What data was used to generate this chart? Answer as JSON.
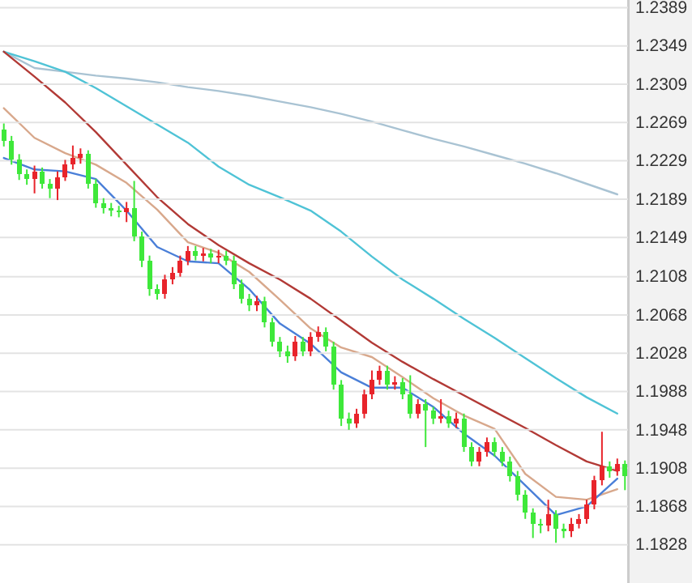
{
  "chart_data": [
    {
      "type": "candlestick",
      "tick_labels": "y",
      "grid": "y",
      "ylim": [
        1.1788,
        1.2397
      ],
      "yticks": [
        1.2389,
        1.2349,
        1.2309,
        1.2269,
        1.2229,
        1.2189,
        1.2149,
        1.2108,
        1.2068,
        1.2028,
        1.1988,
        1.1948,
        1.1908,
        1.1868,
        1.1828
      ],
      "categories": [
        null,
        null,
        null,
        null,
        null,
        null,
        null,
        null,
        null,
        null,
        null,
        null,
        null,
        null,
        null,
        null,
        null,
        null,
        null,
        null,
        null,
        null,
        null,
        null,
        null,
        null,
        null,
        null,
        null,
        null,
        null,
        null,
        null,
        null,
        null,
        null,
        null,
        null,
        null,
        null,
        null,
        null,
        null,
        null,
        null,
        null,
        null,
        null,
        null,
        null,
        null,
        null,
        null,
        null,
        null,
        null,
        null,
        null,
        null,
        null,
        null,
        null,
        null,
        null,
        null,
        null,
        null,
        null,
        null,
        null,
        null,
        null,
        null,
        null,
        null,
        null,
        null,
        null,
        null,
        null,
        null,
        null
      ],
      "ohlc": [
        [
          1.2262,
          1.2268,
          1.2244,
          1.225
        ],
        [
          1.225,
          1.2255,
          1.2225,
          1.223
        ],
        [
          1.223,
          1.2236,
          1.2209,
          1.2215
        ],
        [
          1.2215,
          1.222,
          1.2204,
          1.221
        ],
        [
          1.221,
          1.2224,
          1.2195,
          1.2218
        ],
        [
          1.2218,
          1.2222,
          1.22,
          1.2205
        ],
        [
          1.2205,
          1.221,
          1.219,
          1.22
        ],
        [
          1.22,
          1.2218,
          1.2188,
          1.2212
        ],
        [
          1.2212,
          1.223,
          1.2208,
          1.2225
        ],
        [
          1.2225,
          1.2245,
          1.222,
          1.2232
        ],
        [
          1.2232,
          1.2242,
          1.2226,
          1.2236
        ],
        [
          1.2236,
          1.224,
          1.22,
          1.2205
        ],
        [
          1.2205,
          1.221,
          1.218,
          1.2185
        ],
        [
          1.2185,
          1.219,
          1.2174,
          1.218
        ],
        [
          1.218,
          1.2185,
          1.2171,
          1.2177
        ],
        [
          1.2177,
          1.2182,
          1.217,
          1.2175
        ],
        [
          1.2175,
          1.2186,
          1.2165,
          1.218
        ],
        [
          1.218,
          1.2208,
          1.2145,
          1.215
        ],
        [
          1.215,
          1.2155,
          1.2118,
          1.2125
        ],
        [
          1.2125,
          1.213,
          1.2088,
          1.2095
        ],
        [
          1.2095,
          1.21,
          1.2084,
          1.209
        ],
        [
          1.209,
          1.211,
          1.2085,
          1.2105
        ],
        [
          1.2105,
          1.2118,
          1.21,
          1.2112
        ],
        [
          1.2112,
          1.213,
          1.2108,
          1.2125
        ],
        [
          1.2125,
          1.214,
          1.212,
          1.2135
        ],
        [
          1.2135,
          1.214,
          1.2125,
          1.213
        ],
        [
          1.213,
          1.2138,
          1.2124,
          1.2132
        ],
        [
          1.2132,
          1.2137,
          1.2122,
          1.2128
        ],
        [
          1.2128,
          1.2136,
          1.2122,
          1.213
        ],
        [
          1.213,
          1.2135,
          1.212,
          1.2125
        ],
        [
          1.2125,
          1.213,
          1.2095,
          1.21
        ],
        [
          1.21,
          1.2105,
          1.208,
          1.2085
        ],
        [
          1.2085,
          1.209,
          1.2072,
          1.2078
        ],
        [
          1.2078,
          1.2088,
          1.2072,
          1.2082
        ],
        [
          1.2082,
          1.2087,
          1.2055,
          1.206
        ],
        [
          1.206,
          1.2065,
          1.2035,
          1.204
        ],
        [
          1.204,
          1.2045,
          1.2024,
          1.203
        ],
        [
          1.203,
          1.2036,
          1.2018,
          1.2025
        ],
        [
          1.2025,
          1.2046,
          1.202,
          1.204
        ],
        [
          1.204,
          1.2045,
          1.2025,
          1.203
        ],
        [
          1.203,
          1.205,
          1.2025,
          1.2045
        ],
        [
          1.2045,
          1.2056,
          1.204,
          1.205
        ],
        [
          1.205,
          1.2055,
          1.203,
          1.2035
        ],
        [
          1.2035,
          1.204,
          1.199,
          1.1995
        ],
        [
          1.1995,
          1.2,
          1.1952,
          1.196
        ],
        [
          1.196,
          1.1966,
          1.1948,
          1.1955
        ],
        [
          1.1955,
          1.197,
          1.195,
          1.1965
        ],
        [
          1.1965,
          1.199,
          1.196,
          1.1985
        ],
        [
          1.1985,
          1.201,
          1.198,
          1.2
        ],
        [
          1.2,
          1.2015,
          1.1995,
          1.201
        ],
        [
          1.201,
          1.2015,
          1.199,
          1.1995
        ],
        [
          1.1995,
          1.2004,
          1.199,
          1.1998
        ],
        [
          1.1998,
          1.2002,
          1.198,
          1.1985
        ],
        [
          1.1985,
          1.2005,
          1.196,
          1.1965
        ],
        [
          1.1965,
          1.198,
          1.196,
          1.1975
        ],
        [
          1.1975,
          1.198,
          1.193,
          1.1968
        ],
        [
          1.1968,
          1.1972,
          1.1954,
          1.196
        ],
        [
          1.196,
          1.198,
          1.1955,
          1.1962
        ],
        [
          1.1962,
          1.1968,
          1.195,
          1.1955
        ],
        [
          1.1955,
          1.1966,
          1.195,
          1.196
        ],
        [
          1.196,
          1.1965,
          1.1925,
          1.193
        ],
        [
          1.193,
          1.1935,
          1.191,
          1.1915
        ],
        [
          1.1915,
          1.193,
          1.191,
          1.1925
        ],
        [
          1.1925,
          1.194,
          1.192,
          1.1935
        ],
        [
          1.1935,
          1.194,
          1.192,
          1.1925
        ],
        [
          1.1925,
          1.193,
          1.191,
          1.1915
        ],
        [
          1.1915,
          1.192,
          1.1894,
          1.19
        ],
        [
          1.19,
          1.1905,
          1.1874,
          1.188
        ],
        [
          1.188,
          1.1885,
          1.1855,
          1.1862
        ],
        [
          1.1862,
          1.1866,
          1.1835,
          1.185
        ],
        [
          1.185,
          1.1855,
          1.184,
          1.1848
        ],
        [
          1.1848,
          1.1875,
          1.1842,
          1.186
        ],
        [
          1.186,
          1.1864,
          1.183,
          1.1845
        ],
        [
          1.1845,
          1.185,
          1.1835,
          1.1842
        ],
        [
          1.1842,
          1.1856,
          1.1836,
          1.185
        ],
        [
          1.185,
          1.186,
          1.1845,
          1.1855
        ],
        [
          1.1855,
          1.1875,
          1.185,
          1.187
        ],
        [
          1.187,
          1.19,
          1.1865,
          1.1895
        ],
        [
          1.1895,
          1.1946,
          1.189,
          1.191
        ],
        [
          1.191,
          1.1915,
          1.1898,
          1.1905
        ],
        [
          1.1905,
          1.1918,
          1.19,
          1.1912
        ],
        [
          1.1912,
          1.1916,
          1.1885,
          1.19
        ]
      ]
    },
    {
      "type": "line",
      "tick_labels": false,
      "ylim": [
        1.1788,
        1.2397
      ],
      "yticks": [
        1.2389,
        1.2349,
        1.2309,
        1.2269,
        1.2229,
        1.2189,
        1.2149,
        1.2108,
        1.2068,
        1.2028,
        1.1988,
        1.1948,
        1.1908,
        1.1868,
        1.1828
      ],
      "categories": [
        null,
        null,
        null,
        null,
        null,
        null,
        null,
        null,
        null,
        null,
        null,
        null,
        null,
        null,
        null,
        null,
        null,
        null,
        null,
        null,
        null
      ],
      "series": [
        {
          "color": "#a9c3d3",
          "values": [
            1.2343,
            1.2326,
            1.2322,
            1.2318,
            1.2315,
            1.2311,
            1.2306,
            1.2302,
            1.2297,
            1.2291,
            1.2285,
            1.2278,
            1.227,
            1.2261,
            1.2252,
            1.2244,
            1.2235,
            1.2226,
            1.2216,
            1.2205,
            1.2194
          ]
        },
        {
          "color": "#4fc3d6",
          "values": [
            1.2343,
            1.2333,
            1.2322,
            1.2305,
            1.2286,
            1.2267,
            1.2248,
            1.2223,
            1.2204,
            1.2191,
            1.2177,
            1.2155,
            1.2129,
            1.2105,
            1.2085,
            1.2064,
            1.2044,
            1.2023,
            1.2002,
            1.1982,
            1.1965
          ]
        },
        {
          "color": "#b23a36",
          "values": [
            1.2343,
            1.2317,
            1.229,
            1.2259,
            1.2225,
            1.2191,
            1.2163,
            1.2141,
            1.2122,
            1.2105,
            1.2085,
            1.2062,
            1.2039,
            1.2019,
            1.2001,
            1.1984,
            1.1967,
            1.195,
            1.1932,
            1.1915,
            1.1905
          ]
        },
        {
          "color": "#d8a88c",
          "values": [
            1.2284,
            1.2253,
            1.2237,
            1.2225,
            1.2206,
            1.2178,
            1.2144,
            1.2133,
            1.2113,
            1.2084,
            1.2054,
            1.2034,
            1.2024,
            1.2003,
            1.1981,
            1.1963,
            1.1949,
            1.1902,
            1.1878,
            1.1875,
            1.1886
          ]
        },
        {
          "color": "#4a7fd8",
          "values": [
            1.2232,
            1.222,
            1.2218,
            1.221,
            1.2177,
            1.2139,
            1.2124,
            1.2122,
            1.2095,
            1.2059,
            1.2038,
            1.2008,
            1.1992,
            1.1992,
            1.1972,
            1.1944,
            1.1921,
            1.189,
            1.1859,
            1.1868,
            1.1897
          ]
        }
      ]
    }
  ]
}
